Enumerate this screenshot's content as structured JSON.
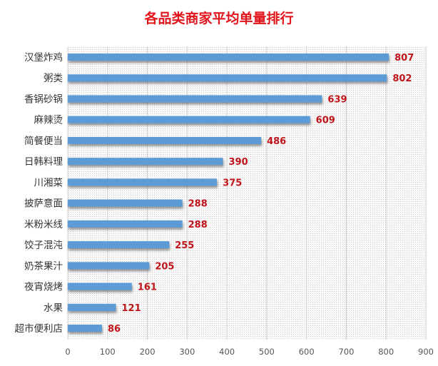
{
  "chart_data": {
    "type": "bar",
    "orientation": "horizontal",
    "title": "各品类商家平均单量排行",
    "xlabel": "",
    "ylabel": "",
    "categories": [
      "汉堡炸鸡",
      "粥类",
      "香锅砂锅",
      "麻辣烫",
      "简餐便当",
      "日韩料理",
      "川湘菜",
      "披萨意面",
      "米粉米线",
      "饺子混沌",
      "奶茶果汁",
      "夜宵烧烤",
      "水果",
      "超市便利店"
    ],
    "values": [
      807,
      802,
      639,
      609,
      486,
      390,
      375,
      288,
      288,
      255,
      205,
      161,
      121,
      86
    ],
    "xlim": [
      0,
      900
    ],
    "xticks": [
      "0",
      "100",
      "200",
      "300",
      "400",
      "500",
      "600",
      "700",
      "800",
      "900"
    ],
    "grid": true,
    "legend": "none",
    "colors": {
      "bar": "#5b9bd5",
      "value_label": "#c0141b",
      "title": "#e0161c",
      "plot_background": "#f2f2f2"
    }
  }
}
